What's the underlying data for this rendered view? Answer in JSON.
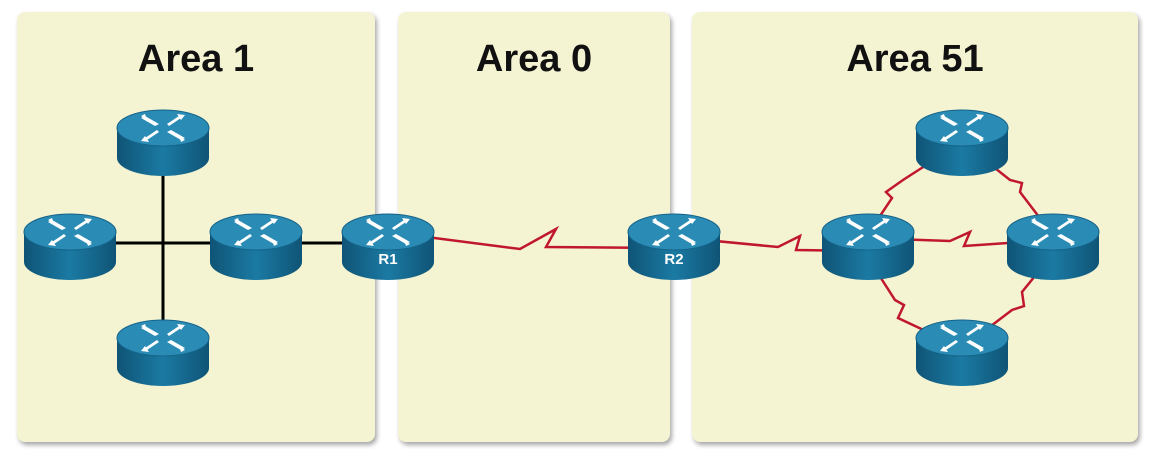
{
  "areas": [
    {
      "title": "Area 1"
    },
    {
      "title": "Area 0"
    },
    {
      "title": "Area 51"
    }
  ],
  "routers": {
    "r1": {
      "label": "R1"
    },
    "r2": {
      "label": "R2"
    }
  },
  "colors": {
    "area_fill": "#f4f3d2",
    "router_body": "#1b6f94",
    "router_top": "#2a8bb5",
    "ethernet_link": "#000000",
    "serial_link": "#c0172d"
  },
  "icons": {
    "router": "router-icon"
  }
}
